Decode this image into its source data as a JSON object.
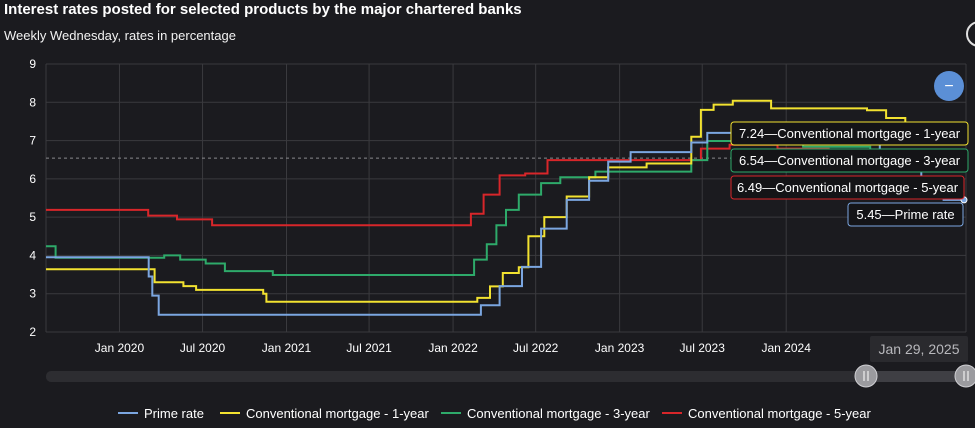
{
  "title": "Interest rates posted for selected products by the major chartered banks",
  "subtitle": "Weekly Wednesday, rates in percentage",
  "navigator_date": "Jan 29, 2025",
  "zoom_button_glyph": "−",
  "colors": {
    "prime": "#7ba6e0",
    "mort1": "#f2e230",
    "mort3": "#2eaa6a",
    "mort5": "#d8262a",
    "background": "#1b1b1f",
    "grid": "#3a3a3e",
    "zoom_button": "#5b8fd6"
  },
  "legend": [
    {
      "label": "Prime rate",
      "color": "#7ba6e0"
    },
    {
      "label": "Conventional mortgage - 1-year",
      "color": "#f2e230"
    },
    {
      "label": "Conventional mortgage - 3-year",
      "color": "#2eaa6a"
    },
    {
      "label": "Conventional mortgage - 5-year",
      "color": "#d8262a"
    }
  ],
  "tooltips": [
    {
      "text": "7.24—Conventional mortgage - 1-year",
      "color": "#f2e230"
    },
    {
      "text": "6.54—Conventional mortgage - 3-year",
      "color": "#2eaa6a"
    },
    {
      "text": "6.49—Conventional mortgage - 5-year",
      "color": "#d8262a"
    },
    {
      "text": "5.45—Prime rate",
      "color": "#7ba6e0"
    }
  ],
  "chart_data": {
    "type": "line",
    "title": "Interest rates posted for selected products by the major chartered banks",
    "subtitle": "Weekly Wednesday, rates in percentage",
    "xlabel": "",
    "ylabel": "",
    "x_range": [
      "2019-07-24",
      "2025-01-29"
    ],
    "ylim": [
      2,
      9
    ],
    "yticks": [
      2,
      3,
      4,
      5,
      6,
      7,
      8,
      9
    ],
    "xticks": [
      {
        "date": "2020-01-01",
        "label": "Jan 2020"
      },
      {
        "date": "2020-07-01",
        "label": "Jul 2020"
      },
      {
        "date": "2021-01-01",
        "label": "Jan 2021"
      },
      {
        "date": "2021-07-01",
        "label": "Jul 2021"
      },
      {
        "date": "2022-01-01",
        "label": "Jan 2022"
      },
      {
        "date": "2022-07-01",
        "label": "Jul 2022"
      },
      {
        "date": "2023-01-01",
        "label": "Jan 2023"
      },
      {
        "date": "2023-07-01",
        "label": "Jul 2023"
      },
      {
        "date": "2024-01-01",
        "label": "Jan 2024"
      }
    ],
    "grid": true,
    "legend_position": "bottom",
    "series": [
      {
        "name": "Prime rate",
        "color": "#7ba6e0",
        "points": [
          [
            "2019-07-24",
            3.95
          ],
          [
            "2020-03-04",
            3.95
          ],
          [
            "2020-03-05",
            3.45
          ],
          [
            "2020-03-13",
            2.95
          ],
          [
            "2020-03-27",
            2.45
          ],
          [
            "2022-03-02",
            2.45
          ],
          [
            "2022-03-03",
            2.7
          ],
          [
            "2022-04-13",
            3.2
          ],
          [
            "2022-06-01",
            3.7
          ],
          [
            "2022-07-13",
            4.7
          ],
          [
            "2022-09-07",
            5.45
          ],
          [
            "2022-10-26",
            5.95
          ],
          [
            "2022-12-07",
            6.45
          ],
          [
            "2023-01-25",
            6.7
          ],
          [
            "2023-06-07",
            6.95
          ],
          [
            "2023-07-12",
            7.2
          ],
          [
            "2024-06-05",
            6.95
          ],
          [
            "2024-07-24",
            6.7
          ],
          [
            "2024-09-04",
            6.45
          ],
          [
            "2024-10-23",
            5.95
          ],
          [
            "2024-12-11",
            5.45
          ],
          [
            "2025-01-29",
            5.45
          ]
        ]
      },
      {
        "name": "Conventional mortgage - 1-year",
        "color": "#f2e230",
        "points": [
          [
            "2019-07-24",
            3.64
          ],
          [
            "2020-03-11",
            3.64
          ],
          [
            "2020-03-18",
            3.3
          ],
          [
            "2020-05-20",
            3.2
          ],
          [
            "2020-06-17",
            3.1
          ],
          [
            "2020-11-11",
            3.0
          ],
          [
            "2020-11-18",
            2.79
          ],
          [
            "2022-01-26",
            2.79
          ],
          [
            "2022-02-23",
            2.89
          ],
          [
            "2022-03-23",
            3.19
          ],
          [
            "2022-04-20",
            3.54
          ],
          [
            "2022-05-25",
            3.69
          ],
          [
            "2022-06-15",
            4.5
          ],
          [
            "2022-07-20",
            5.0
          ],
          [
            "2022-09-07",
            5.54
          ],
          [
            "2022-10-26",
            6.04
          ],
          [
            "2022-12-07",
            6.3
          ],
          [
            "2023-03-01",
            6.4
          ],
          [
            "2023-06-07",
            7.1
          ],
          [
            "2023-06-28",
            7.8
          ],
          [
            "2023-07-26",
            7.94
          ],
          [
            "2023-09-06",
            8.04
          ],
          [
            "2023-11-29",
            7.84
          ],
          [
            "2024-06-26",
            7.79
          ],
          [
            "2024-08-07",
            7.59
          ],
          [
            "2024-09-18",
            7.39
          ],
          [
            "2025-01-29",
            7.24
          ]
        ]
      },
      {
        "name": "Conventional mortgage - 3-year",
        "color": "#2eaa6a",
        "points": [
          [
            "2019-07-24",
            4.24
          ],
          [
            "2019-08-14",
            3.94
          ],
          [
            "2020-04-08",
            4.0
          ],
          [
            "2020-05-13",
            3.89
          ],
          [
            "2020-07-08",
            3.79
          ],
          [
            "2020-08-19",
            3.59
          ],
          [
            "2020-12-02",
            3.49
          ],
          [
            "2022-01-26",
            3.49
          ],
          [
            "2022-02-16",
            3.89
          ],
          [
            "2022-03-16",
            4.29
          ],
          [
            "2022-04-06",
            4.79
          ],
          [
            "2022-04-27",
            5.19
          ],
          [
            "2022-05-25",
            5.59
          ],
          [
            "2022-07-13",
            5.89
          ],
          [
            "2022-08-24",
            6.04
          ],
          [
            "2022-11-09",
            6.19
          ],
          [
            "2023-06-07",
            6.49
          ],
          [
            "2023-07-12",
            6.99
          ],
          [
            "2024-02-07",
            6.84
          ],
          [
            "2024-07-03",
            6.64
          ],
          [
            "2025-01-29",
            6.54
          ]
        ]
      },
      {
        "name": "Conventional mortgage - 5-year",
        "color": "#d8262a",
        "points": [
          [
            "2019-07-24",
            5.19
          ],
          [
            "2020-02-05",
            5.19
          ],
          [
            "2020-03-04",
            5.04
          ],
          [
            "2020-05-06",
            4.94
          ],
          [
            "2020-07-22",
            4.79
          ],
          [
            "2022-01-12",
            4.79
          ],
          [
            "2022-02-09",
            5.09
          ],
          [
            "2022-03-09",
            5.59
          ],
          [
            "2022-04-13",
            6.09
          ],
          [
            "2022-06-08",
            6.14
          ],
          [
            "2022-07-27",
            6.49
          ],
          [
            "2022-10-05",
            6.49
          ],
          [
            "2023-06-28",
            6.79
          ],
          [
            "2023-08-30",
            6.89
          ],
          [
            "2023-12-13",
            6.79
          ],
          [
            "2024-04-03",
            6.69
          ],
          [
            "2024-09-04",
            6.59
          ],
          [
            "2025-01-29",
            6.49
          ]
        ]
      }
    ]
  }
}
